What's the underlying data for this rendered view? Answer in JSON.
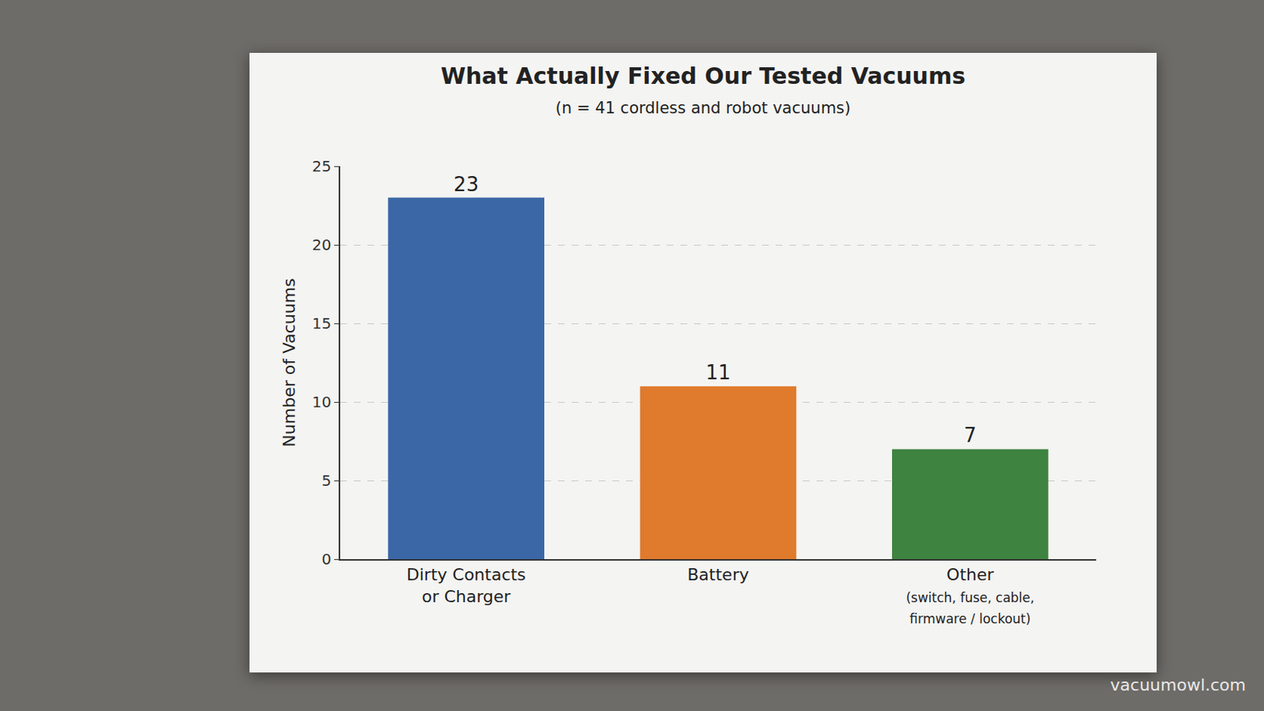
{
  "chart_data": {
    "type": "bar",
    "title": "What Actually Fixed Our Tested Vacuums",
    "subtitle": "(n = 41 cordless and robot vacuums)",
    "y_label": "Number of Vacuums",
    "categories": [
      "Dirty Contacts\nor Charger",
      "Battery",
      "Other\n(switch, fuse, cable,\nfirmware / lockout)"
    ],
    "values": [
      23,
      11,
      7
    ],
    "colors": [
      "#3b67a6",
      "#e07a2c",
      "#3e8340"
    ],
    "ylim": [
      0,
      25
    ],
    "yticks": [
      0,
      5,
      10,
      15,
      20,
      25
    ],
    "grid": true,
    "data_labels": true,
    "watermark": "vacuumowl.com"
  }
}
